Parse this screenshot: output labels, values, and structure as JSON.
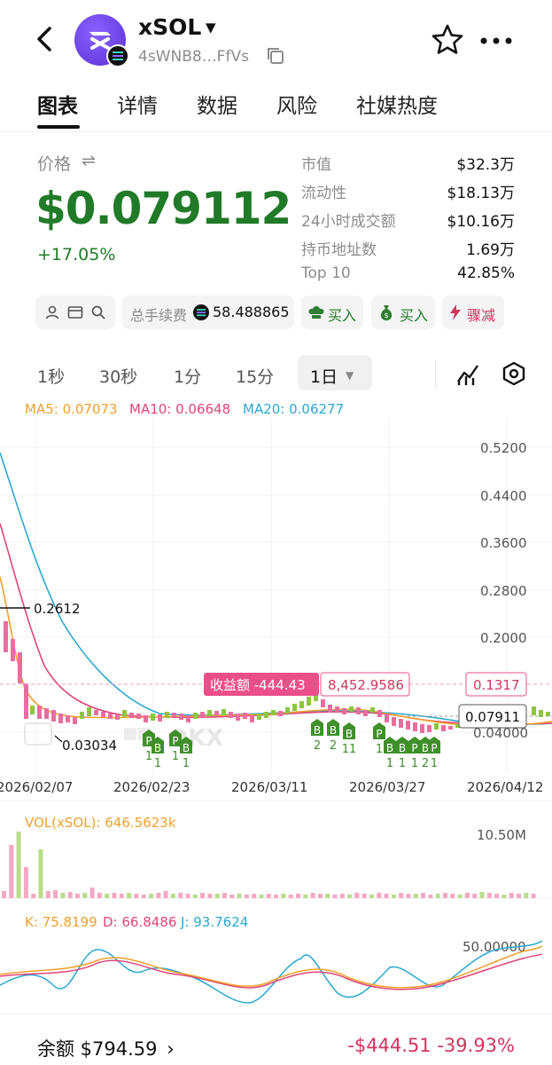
{
  "header": {
    "token_name": "xSOL",
    "address": "4sWNB8…FfVs",
    "colors": {
      "logo": "#6a3ff0"
    }
  },
  "tabs": [
    "图表",
    "详情",
    "数据",
    "风险",
    "社媒热度"
  ],
  "price": {
    "label": "价格",
    "value": "$0.079112",
    "change": "+17.05%",
    "color": "#207a28"
  },
  "stats": [
    {
      "label": "市值",
      "value": "$32.3万"
    },
    {
      "label": "流动性",
      "value": "$18.13万"
    },
    {
      "label": "24小时成交额",
      "value": "$10.16万"
    },
    {
      "label": "持币地址数",
      "value": "1.69万"
    },
    {
      "label": "Top 10",
      "value": "42.85%"
    }
  ],
  "chips": {
    "fee_label": "总手续费",
    "fee_value": "58.488865",
    "buy1": "买入",
    "buy2": "买入",
    "drop": "骤减"
  },
  "intervals": [
    "1秒",
    "30秒",
    "1分",
    "15分",
    "1日"
  ],
  "ma": {
    "ma5": "MA5: 0.07073",
    "ma10": "MA10: 0.06648",
    "ma20": "MA20: 0.06277"
  },
  "chart_data": {
    "type": "candlestick",
    "y_ticks": [
      "0.5200",
      "0.4400",
      "0.3600",
      "0.2800",
      "0.2000",
      "0.04000"
    ],
    "x_ticks": [
      "2026/02/07",
      "2026/02/23",
      "2026/03/11",
      "2026/03/27",
      "2026/04/12"
    ],
    "high_marker": "0.2612",
    "low_marker": "0.03034",
    "pnl_line": {
      "label": "收益额 -444.43",
      "value": "8,452.9586",
      "price": "0.1317"
    },
    "current_price_tag": "0.07911",
    "watermark": "OKX",
    "trade_markers": [
      {
        "side": "P",
        "count": "1"
      },
      {
        "side": "B",
        "count": "1"
      },
      {
        "side": "P",
        "count": "1"
      },
      {
        "side": "B",
        "count": "1"
      },
      {
        "side": "B",
        "count": "2"
      },
      {
        "side": "B",
        "count": "2"
      },
      {
        "side": "B",
        "count": "11"
      },
      {
        "side": "P",
        "count": "1"
      },
      {
        "side": "B",
        "count": "1"
      },
      {
        "side": "B",
        "count": "1"
      },
      {
        "side": "P",
        "count": "1"
      },
      {
        "side": "B",
        "count": "2"
      },
      {
        "side": "P",
        "count": "1"
      }
    ]
  },
  "volume": {
    "label": "VOL(xSOL): 646.5623k",
    "max_tick": "10.50M"
  },
  "kdj": {
    "k": "K: 75.8199",
    "d": "D: 66.8486",
    "j": "J: 93.7624",
    "tick": "50.00000"
  },
  "footer": {
    "balance": "余额 $794.59",
    "pnl": "-$444.51 -39.93%"
  }
}
